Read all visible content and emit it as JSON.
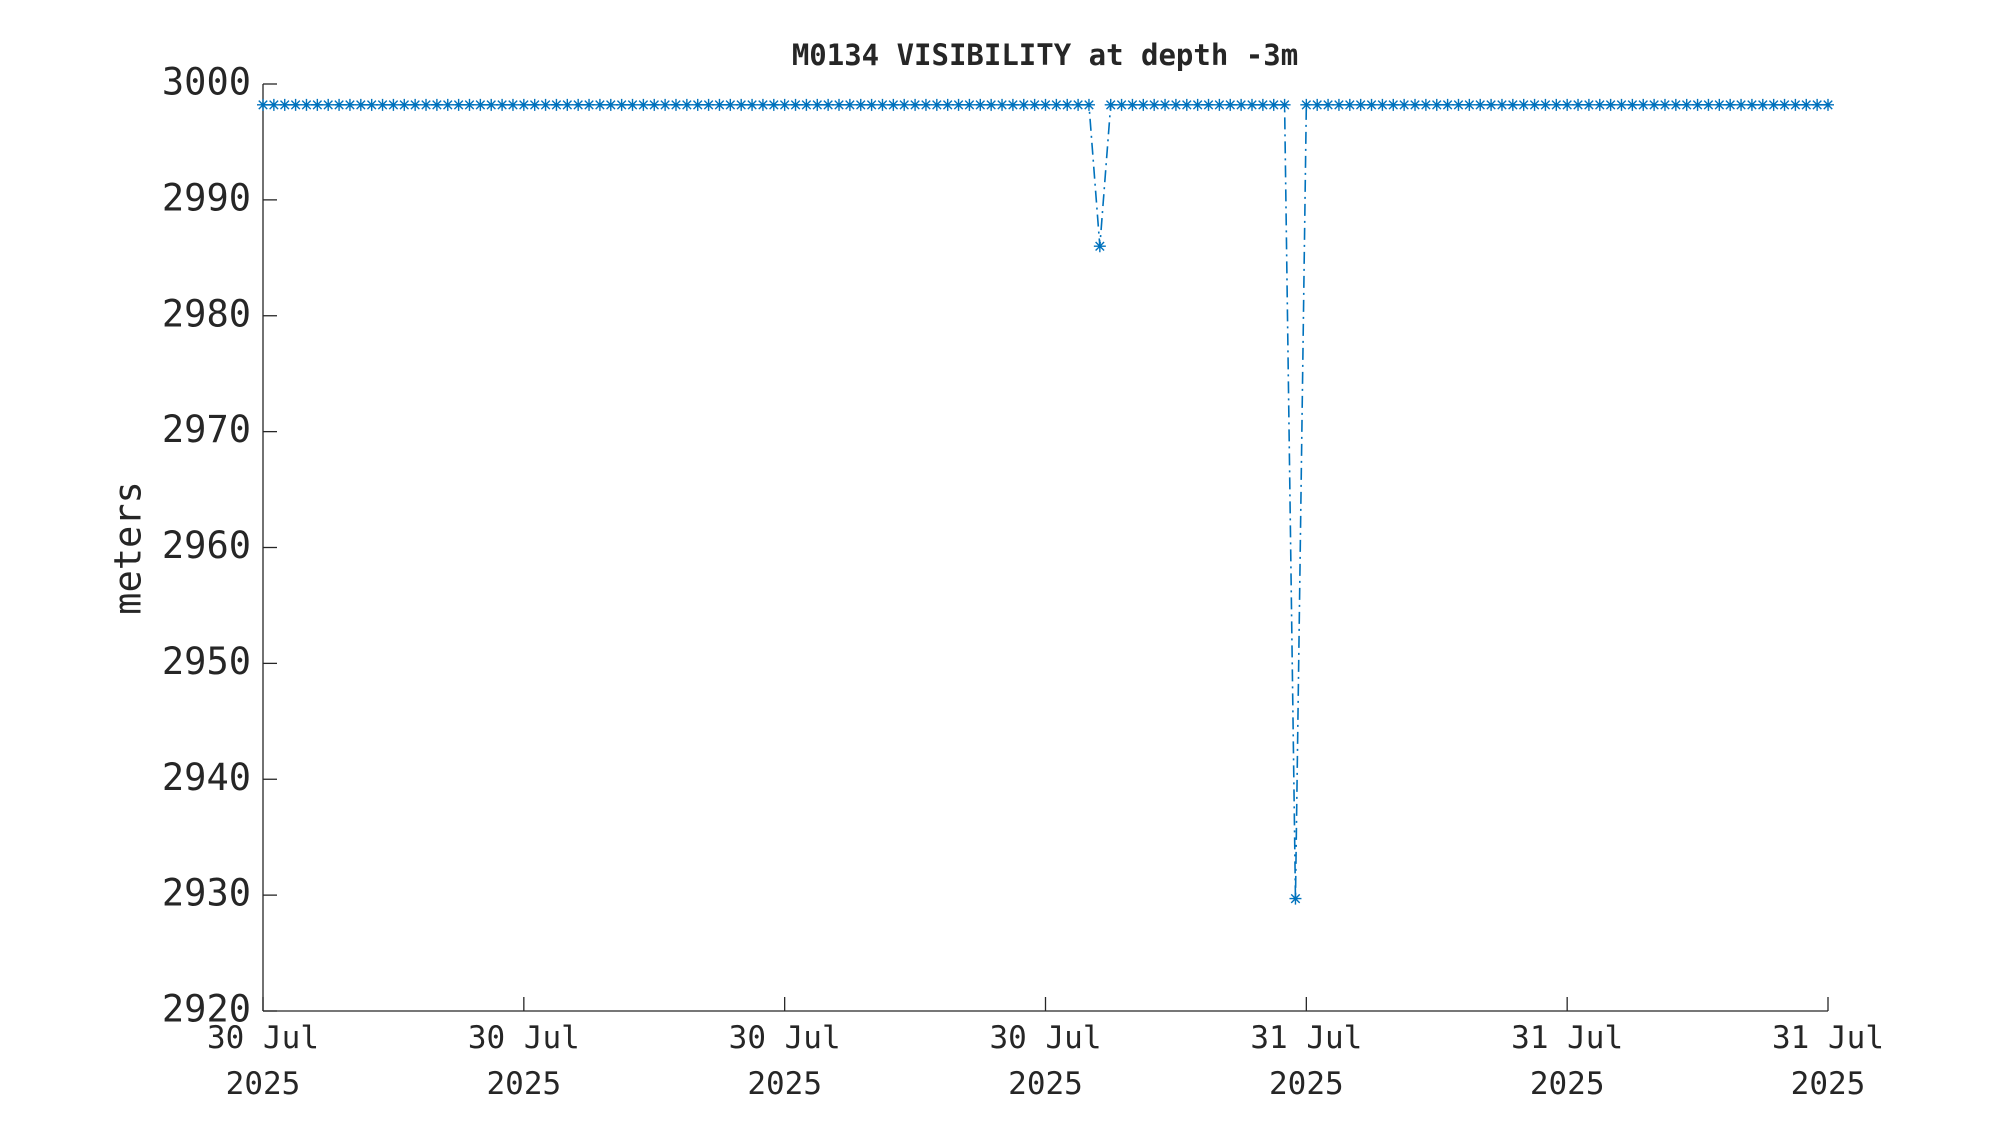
{
  "chart_data": {
    "type": "line",
    "title": "M0134 VISIBILITY at depth -3m",
    "y_label": "meters",
    "xlim": [
      0,
      1440
    ],
    "xticks": [
      {
        "value": 0,
        "label": "30 Jul 2025"
      },
      {
        "value": 240,
        "label": "30 Jul 2025"
      },
      {
        "value": 480,
        "label": "30 Jul 2025"
      },
      {
        "value": 720,
        "label": "30 Jul 2025"
      },
      {
        "value": 960,
        "label": "31 Jul 2025"
      },
      {
        "value": 1200,
        "label": "31 Jul 2025"
      },
      {
        "value": 1440,
        "label": "31 Jul 2025"
      }
    ],
    "ylim": [
      2920,
      3000
    ],
    "yticks": [
      2920,
      2930,
      2940,
      2950,
      2960,
      2970,
      2980,
      2990,
      3000
    ],
    "x": [
      0,
      10,
      20,
      30,
      40,
      50,
      60,
      70,
      80,
      90,
      100,
      110,
      120,
      130,
      140,
      150,
      160,
      170,
      180,
      190,
      200,
      210,
      220,
      230,
      240,
      250,
      260,
      270,
      280,
      290,
      300,
      310,
      320,
      330,
      340,
      350,
      360,
      370,
      380,
      390,
      400,
      410,
      420,
      430,
      440,
      450,
      460,
      470,
      480,
      490,
      500,
      510,
      520,
      530,
      540,
      550,
      560,
      570,
      580,
      590,
      600,
      610,
      620,
      630,
      640,
      650,
      660,
      670,
      680,
      690,
      700,
      710,
      720,
      730,
      740,
      750,
      760,
      770,
      780,
      790,
      800,
      810,
      820,
      830,
      840,
      850,
      860,
      870,
      880,
      890,
      900,
      910,
      920,
      930,
      940,
      950,
      960,
      970,
      980,
      990,
      1000,
      1010,
      1020,
      1030,
      1040,
      1050,
      1060,
      1070,
      1080,
      1090,
      1100,
      1110,
      1120,
      1130,
      1140,
      1150,
      1160,
      1170,
      1180,
      1190,
      1200,
      1210,
      1220,
      1230,
      1240,
      1250,
      1260,
      1270,
      1280,
      1290,
      1300,
      1310,
      1320,
      1330,
      1340,
      1350,
      1360,
      1370,
      1380,
      1390,
      1400,
      1410,
      1420,
      1430,
      1440
    ],
    "series": [
      {
        "color": "#0072bd",
        "values": [
          2998.2,
          2998.2,
          2998.2,
          2998.2,
          2998.2,
          2998.2,
          2998.2,
          2998.2,
          2998.2,
          2998.2,
          2998.2,
          2998.2,
          2998.2,
          2998.2,
          2998.2,
          2998.2,
          2998.2,
          2998.2,
          2998.2,
          2998.2,
          2998.2,
          2998.2,
          2998.2,
          2998.2,
          2998.2,
          2998.2,
          2998.2,
          2998.2,
          2998.2,
          2998.2,
          2998.2,
          2998.2,
          2998.2,
          2998.2,
          2998.2,
          2998.2,
          2998.2,
          2998.2,
          2998.2,
          2998.2,
          2998.2,
          2998.2,
          2998.2,
          2998.2,
          2998.2,
          2998.2,
          2998.2,
          2998.2,
          2998.2,
          2998.2,
          2998.2,
          2998.2,
          2998.2,
          2998.2,
          2998.2,
          2998.2,
          2998.2,
          2998.2,
          2998.2,
          2998.2,
          2998.2,
          2998.2,
          2998.2,
          2998.2,
          2998.2,
          2998.2,
          2998.2,
          2998.2,
          2998.2,
          2998.2,
          2998.2,
          2998.2,
          2998.2,
          2998.2,
          2998.2,
          2998.2,
          2998.2,
          2986,
          2998.2,
          2998.2,
          2998.2,
          2998.2,
          2998.2,
          2998.2,
          2998.2,
          2998.2,
          2998.2,
          2998.2,
          2998.2,
          2998.2,
          2998.2,
          2998.2,
          2998.2,
          2998.2,
          2998.2,
          2929.7,
          2998.2,
          2998.2,
          2998.2,
          2998.2,
          2998.2,
          2998.2,
          2998.2,
          2998.2,
          2998.2,
          2998.2,
          2998.2,
          2998.2,
          2998.2,
          2998.2,
          2998.2,
          2998.2,
          2998.2,
          2998.2,
          2998.2,
          2998.2,
          2998.2,
          2998.2,
          2998.2,
          2998.2,
          2998.2,
          2998.2,
          2998.2,
          2998.2,
          2998.2,
          2998.2,
          2998.2,
          2998.2,
          2998.2,
          2998.2,
          2998.2,
          2998.2,
          2998.2,
          2998.2,
          2998.2,
          2998.2,
          2998.2,
          2998.2,
          2998.2,
          2998.2,
          2998.2,
          2998.2,
          2998.2,
          2998.2,
          2998.2
        ]
      }
    ]
  }
}
